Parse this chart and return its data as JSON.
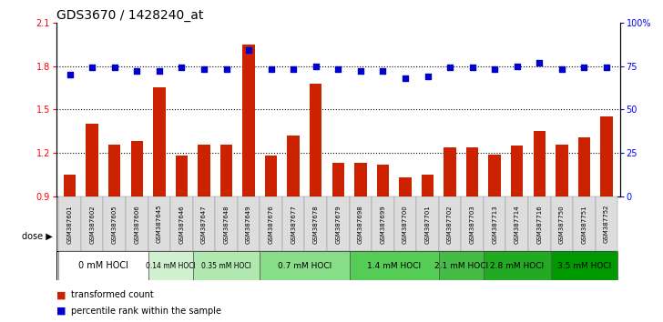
{
  "title": "GDS3670 / 1428240_at",
  "samples": [
    "GSM387601",
    "GSM387602",
    "GSM387605",
    "GSM387606",
    "GSM387645",
    "GSM387646",
    "GSM387647",
    "GSM387648",
    "GSM387649",
    "GSM387676",
    "GSM387677",
    "GSM387678",
    "GSM387679",
    "GSM387698",
    "GSM387699",
    "GSM387700",
    "GSM387701",
    "GSM387702",
    "GSM387703",
    "GSM387713",
    "GSM387714",
    "GSM387716",
    "GSM387750",
    "GSM387751",
    "GSM387752"
  ],
  "bar_values": [
    1.05,
    1.4,
    1.26,
    1.28,
    1.65,
    1.18,
    1.26,
    1.26,
    1.95,
    1.18,
    1.32,
    1.68,
    1.13,
    1.13,
    1.12,
    1.03,
    1.05,
    1.24,
    1.24,
    1.19,
    1.25,
    1.35,
    1.26,
    1.31,
    1.45
  ],
  "percentile_values": [
    70,
    74,
    74,
    72,
    72,
    74,
    73,
    73,
    84,
    73,
    73,
    75,
    73,
    72,
    72,
    68,
    69,
    74,
    74,
    73,
    75,
    77,
    73,
    74,
    74
  ],
  "bar_color": "#cc2200",
  "dot_color": "#0000cc",
  "ylim_left": [
    0.9,
    2.1
  ],
  "ylim_right": [
    0,
    100
  ],
  "yticks_left": [
    0.9,
    1.2,
    1.5,
    1.8,
    2.1
  ],
  "yticks_right": [
    0,
    25,
    50,
    75,
    100
  ],
  "ytick_labels_right": [
    "0",
    "25",
    "50",
    "75",
    "100%"
  ],
  "groups": [
    {
      "label": "0 mM HOCl",
      "start": 0,
      "end": 4,
      "bg": "#ffffff"
    },
    {
      "label": "0.14 mM HOCl",
      "start": 4,
      "end": 6,
      "bg": "#d0f0d0"
    },
    {
      "label": "0.35 mM HOCl",
      "start": 6,
      "end": 9,
      "bg": "#b0e8b0"
    },
    {
      "label": "0.7 mM HOCl",
      "start": 9,
      "end": 13,
      "bg": "#88dd88"
    },
    {
      "label": "1.4 mM HOCl",
      "start": 13,
      "end": 17,
      "bg": "#55cc55"
    },
    {
      "label": "2.1 mM HOCl",
      "start": 17,
      "end": 19,
      "bg": "#44bb44"
    },
    {
      "label": "2.8 mM HOCl",
      "start": 19,
      "end": 22,
      "bg": "#22aa22"
    },
    {
      "label": "3.5 mM HOCl",
      "start": 22,
      "end": 25,
      "bg": "#009900"
    }
  ],
  "dose_label": "dose",
  "legend_bar_label": "transformed count",
  "legend_dot_label": "percentile rank within the sample",
  "title_fontsize": 10,
  "tick_fontsize": 5,
  "group_label_fontsize": 6
}
